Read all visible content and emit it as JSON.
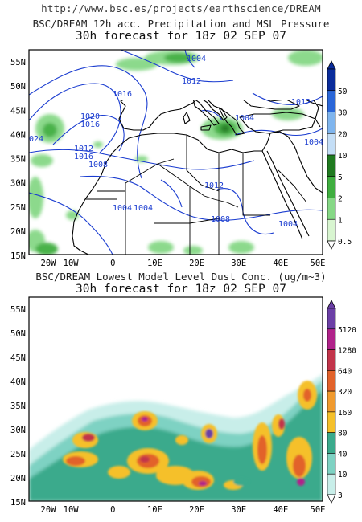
{
  "header": {
    "source_url": "http://www.bsc.es/projects/earthscience/DREAM"
  },
  "panels": [
    {
      "title": "BSC/DREAM 12h acc. Precipitation and MSL Pressure",
      "subtitle": "30h forecast for 18z 02 SEP 07",
      "lat_labels": [
        "55N",
        "50N",
        "45N",
        "40N",
        "35N",
        "30N",
        "25N",
        "20N",
        "15N"
      ],
      "lon_labels": [
        "20W",
        "10W",
        "0",
        "10E",
        "20E",
        "30E",
        "40E",
        "50E"
      ],
      "colorbar": {
        "labels": [
          "50",
          "30",
          "20",
          "10",
          "5",
          "2",
          "1",
          "0.5"
        ],
        "colors": [
          "#0a2c9c",
          "#2a66d8",
          "#7fb5ee",
          "#c4def6",
          "#1f7a1f",
          "#3fae3f",
          "#86d886",
          "#d8f5d0"
        ]
      },
      "isobar_labels": [
        "1004",
        "1012",
        "1020",
        "1016",
        "1012",
        "1016",
        "1008",
        "1004",
        "1012",
        "1008",
        "1004",
        "1016",
        "1004",
        "1012",
        "024",
        "1004",
        "1004"
      ]
    },
    {
      "title": "BSC/DREAM Lowest Model Level Dust Conc. (ug/m~3)",
      "subtitle": "30h forecast for 18z 02 SEP 07",
      "lat_labels": [
        "55N",
        "50N",
        "45N",
        "40N",
        "35N",
        "30N",
        "25N",
        "20N",
        "15N"
      ],
      "lon_labels": [
        "20W",
        "10W",
        "0",
        "10E",
        "20E",
        "30E",
        "40E",
        "50E"
      ],
      "colorbar": {
        "labels": [
          "5120",
          "1280",
          "640",
          "320",
          "160",
          "80",
          "40",
          "10",
          "3"
        ],
        "colors": [
          "#6b3fa6",
          "#b0228a",
          "#c2344a",
          "#e2622a",
          "#f09a2e",
          "#f5c02a",
          "#3aaa8c",
          "#7ed2c3",
          "#c8eee9"
        ]
      }
    }
  ]
}
